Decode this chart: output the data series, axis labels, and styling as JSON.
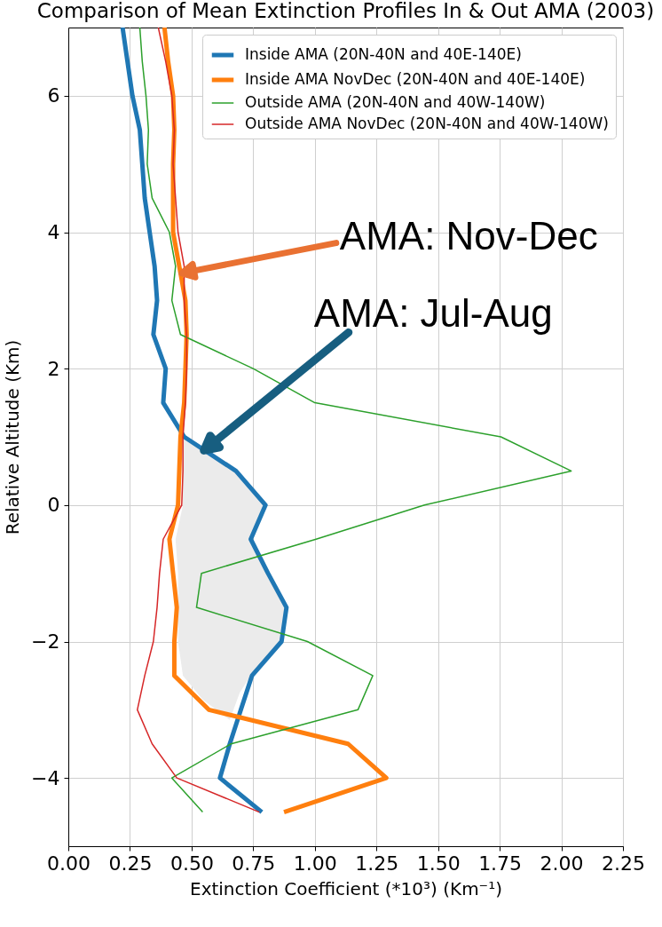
{
  "chart_data": {
    "type": "line",
    "title": "Comparison of Mean Extinction Profiles In & Out AMA (2003)",
    "xlabel": "Extinction Coefficient (*10³) (Km⁻¹)",
    "ylabel": "Relative Altitude (Km)",
    "xlim": [
      0,
      2.25
    ],
    "ylim": [
      -5,
      7
    ],
    "xticks": [
      {
        "value": 0,
        "label": "0.00"
      },
      0.25,
      {
        "value": 0.5,
        "label": "0.50"
      },
      0.75,
      {
        "value": 1,
        "label": "1.00"
      },
      1.25,
      {
        "value": 1.5,
        "label": "1.50"
      },
      1.75,
      {
        "value": 2,
        "label": "2.00"
      },
      2.25
    ],
    "yticks": [
      {
        "value": -4,
        "label": "−4"
      },
      {
        "value": -2,
        "label": "−2"
      },
      0,
      2,
      4,
      6
    ],
    "grid": true,
    "legend": "top right",
    "series": [
      {
        "type": "area",
        "color": "#ebebeb",
        "x": [
          0.465,
          0.56,
          0.68,
          0.795,
          0.735,
          0.81,
          0.88,
          0.86,
          0.74,
          0.695,
          0.655,
          0.545,
          0.465,
          0.445,
          0.445,
          0.435,
          0.465,
          0.46,
          0.46
        ],
        "values": [
          1.05,
          0.8,
          0.5,
          0.0,
          -0.5,
          -1.0,
          -1.5,
          -2.0,
          -2.5,
          -2.75,
          -3.15,
          -2.85,
          -2.5,
          -2.0,
          -1.0,
          -0.5,
          0.0,
          0.5,
          1.0
        ]
      },
      {
        "type": "line",
        "name": "Inside AMA (20N-40N and 40E-140E)",
        "color": "#1f77b4",
        "x": [
          0.22,
          0.24,
          0.26,
          0.29,
          0.3,
          0.31,
          0.33,
          0.35,
          0.36,
          0.345,
          0.395,
          0.385,
          0.47,
          0.68,
          0.8,
          0.74,
          0.81,
          0.885,
          0.865,
          0.745,
          0.7,
          0.655,
          0.615,
          0.785
        ],
        "values": [
          7,
          6.5,
          6,
          5.5,
          5,
          4.5,
          4,
          3.5,
          3,
          2.5,
          2,
          1.5,
          1,
          0.5,
          0,
          -0.5,
          -1,
          -1.5,
          -2,
          -2.5,
          -3,
          -3.5,
          -4,
          -4.5
        ]
      },
      {
        "type": "line",
        "name": "Inside AMA NovDec (20N-40N and 40E-140E)",
        "color": "#ff7f0e",
        "x": [
          0.39,
          0.405,
          0.425,
          0.43,
          0.425,
          0.425,
          0.425,
          0.45,
          0.475,
          0.48,
          0.475,
          0.47,
          0.455,
          0.45,
          0.445,
          0.41,
          0.425,
          0.44,
          0.43,
          0.43,
          0.57,
          1.135,
          1.29,
          0.875
        ],
        "values": [
          7,
          6.5,
          6,
          5.5,
          5,
          4.5,
          4,
          3.5,
          3,
          2.5,
          2,
          1.5,
          1,
          0.5,
          0,
          -0.5,
          -1,
          -1.5,
          -2,
          -2.5,
          -3,
          -3.5,
          -4,
          -4.5
        ]
      },
      {
        "type": "line",
        "name": "Outside AMA (20N-40N and 40W-140W)",
        "color": "#2ca02c",
        "x": [
          0.29,
          0.3,
          0.315,
          0.325,
          0.32,
          0.34,
          0.41,
          0.435,
          0.42,
          0.455,
          0.75,
          1.0,
          1.755,
          2.04,
          1.445,
          1.005,
          0.54,
          0.52,
          0.97,
          1.235,
          1.175,
          0.66,
          0.42,
          0.545
        ],
        "values": [
          7,
          6.5,
          6,
          5.5,
          5,
          4.5,
          4,
          3.5,
          3,
          2.5,
          2,
          1.5,
          1,
          0.5,
          0,
          -0.5,
          -1,
          -1.5,
          -2,
          -2.5,
          -3,
          -3.5,
          -4,
          -4.5
        ]
      },
      {
        "type": "line",
        "name": "Outside AMA NovDec (20N-40N and 40W-140W)",
        "color": "#d62728",
        "x": [
          0.365,
          0.395,
          0.42,
          0.43,
          0.425,
          0.435,
          0.445,
          0.47,
          0.47,
          0.48,
          0.48,
          0.475,
          0.465,
          0.465,
          0.46,
          0.385,
          0.37,
          0.36,
          0.345,
          0.31,
          0.28,
          0.34,
          0.44,
          0.775
        ],
        "values": [
          7,
          6.5,
          6,
          5.5,
          5,
          4.5,
          4,
          3.5,
          3,
          2.5,
          2,
          1.5,
          1,
          0.5,
          0,
          -0.5,
          -1,
          -1.5,
          -2,
          -2.5,
          -3,
          -3.5,
          -4,
          -4.5
        ]
      }
    ],
    "annotations": [
      {
        "text": "AMA: Nov-Dec",
        "x": 0.46,
        "y": 3.4
      },
      {
        "text": "AMA: Jul-Aug",
        "x": 0.55,
        "y": 0.8
      }
    ]
  }
}
